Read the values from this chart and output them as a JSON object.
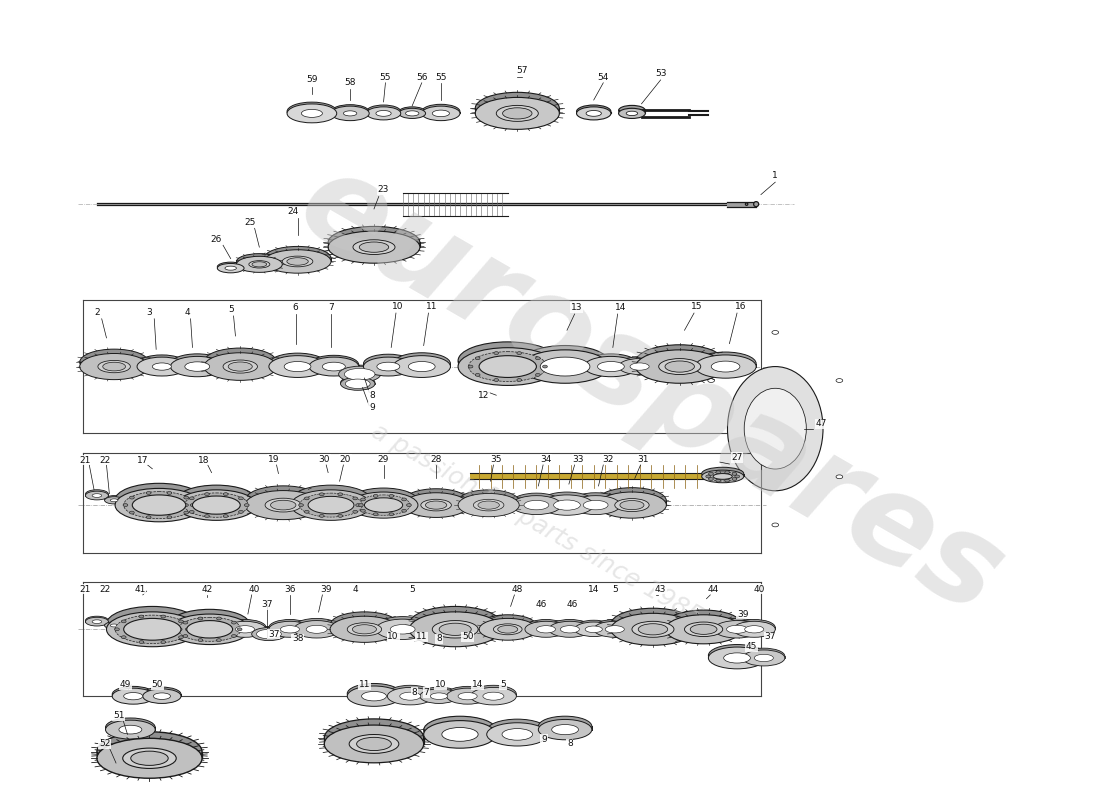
{
  "bg_color": "#ffffff",
  "lc": "#1a1a1a",
  "lc_mid": "#555555",
  "lc_light": "#888888",
  "fill_gear": "#b8b8b8",
  "fill_ring": "#d0d0d0",
  "fill_light": "#e8e8e8",
  "fill_dark": "#888888",
  "fill_white": "#ffffff",
  "watermark1": "eurospares",
  "watermark2": "a passion for parts since 1985",
  "wm_color": "#c8c8c8",
  "wm_alpha": 0.45,
  "fig_w": 11.0,
  "fig_h": 8.0,
  "label_fs": 6.5
}
